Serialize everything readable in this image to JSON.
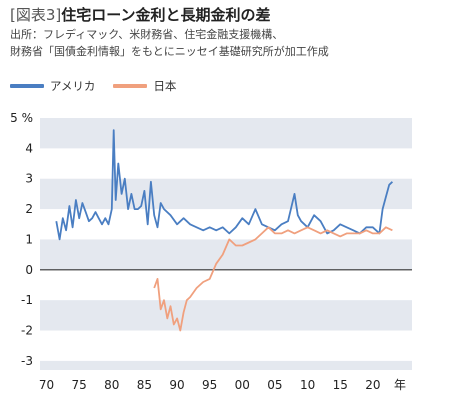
{
  "header": {
    "tag": "[図表3]",
    "title": "住宅ローン金利と長期金利の差",
    "source_line1": "出所：フレディマック、米財務省、住宅金融支援機構、",
    "source_line2": "財務省「国債金利情報」をもとにニッセイ基礎研究所が加工作成"
  },
  "colors": {
    "usa": "#4a7ec2",
    "japan": "#f0a07e",
    "band": "#e4e8ef",
    "zero_line": "#333333"
  },
  "chart_data": {
    "type": "line",
    "ylabel": "%",
    "xlabel": "年",
    "ylim": [
      -3.3,
      5
    ],
    "xlim": [
      1969,
      2026
    ],
    "y_ticks": [
      5,
      4,
      3,
      2,
      1,
      0,
      -1,
      -2,
      -3
    ],
    "y_tick_labels": [
      "5 %",
      "4",
      "3",
      "2",
      "1",
      "0",
      "-1",
      "-2",
      "-3"
    ],
    "x_ticks": [
      1970,
      1975,
      1980,
      1985,
      1990,
      1995,
      2000,
      2005,
      2010,
      2015,
      2020
    ],
    "x_tick_labels": [
      "70",
      "75",
      "80",
      "85",
      "90",
      "95",
      "00",
      "05",
      "10",
      "15",
      "20"
    ],
    "x_unit_label": "年",
    "series": [
      {
        "name": "アメリカ",
        "x": [
          1971.5,
          1972,
          1972.5,
          1973,
          1973.5,
          1974,
          1974.5,
          1975,
          1975.5,
          1976,
          1976.5,
          1977,
          1977.5,
          1978,
          1978.5,
          1979,
          1979.5,
          1980,
          1980.3,
          1980.6,
          1981,
          1981.5,
          1982,
          1982.5,
          1983,
          1983.5,
          1984,
          1984.5,
          1985,
          1985.5,
          1986,
          1986.5,
          1987,
          1987.5,
          1988,
          1989,
          1990,
          1991,
          1992,
          1993,
          1994,
          1995,
          1996,
          1997,
          1998,
          1999,
          2000,
          2001,
          2002,
          2003,
          2004,
          2005,
          2006,
          2007,
          2008,
          2008.5,
          2009,
          2010,
          2011,
          2012,
          2013,
          2014,
          2015,
          2016,
          2017,
          2018,
          2019,
          2020,
          2021,
          2021.5,
          2022,
          2022.5,
          2023
        ],
        "values": [
          1.6,
          1.0,
          1.7,
          1.3,
          2.1,
          1.4,
          2.3,
          1.7,
          2.2,
          1.9,
          1.6,
          1.7,
          1.9,
          1.7,
          1.5,
          1.7,
          1.5,
          2.0,
          4.6,
          2.3,
          3.5,
          2.5,
          3.0,
          2.0,
          2.5,
          2.0,
          2.0,
          2.1,
          2.6,
          1.5,
          2.9,
          1.8,
          1.4,
          2.2,
          2.0,
          1.8,
          1.5,
          1.7,
          1.5,
          1.4,
          1.3,
          1.4,
          1.3,
          1.4,
          1.2,
          1.4,
          1.7,
          1.5,
          2.0,
          1.5,
          1.4,
          1.3,
          1.5,
          1.6,
          2.5,
          1.8,
          1.6,
          1.4,
          1.8,
          1.6,
          1.2,
          1.3,
          1.5,
          1.4,
          1.3,
          1.2,
          1.4,
          1.4,
          1.2,
          2.0,
          2.4,
          2.8,
          2.9
        ]
      },
      {
        "name": "日本",
        "x": [
          1986.5,
          1987,
          1987.5,
          1988,
          1988.5,
          1989,
          1989.5,
          1990,
          1990.5,
          1991,
          1991.5,
          1992,
          1993,
          1994,
          1995,
          1996,
          1997,
          1998,
          1999,
          2000,
          2001,
          2002,
          2003,
          2004,
          2005,
          2006,
          2007,
          2008,
          2009,
          2010,
          2011,
          2012,
          2013,
          2014,
          2015,
          2016,
          2017,
          2018,
          2019,
          2020,
          2021,
          2022,
          2023
        ],
        "values": [
          -0.6,
          -0.3,
          -1.3,
          -1.0,
          -1.6,
          -1.2,
          -1.8,
          -1.6,
          -2.0,
          -1.4,
          -1.0,
          -0.9,
          -0.6,
          -0.4,
          -0.3,
          0.2,
          0.5,
          1.0,
          0.8,
          0.8,
          0.9,
          1.0,
          1.2,
          1.4,
          1.2,
          1.2,
          1.3,
          1.2,
          1.3,
          1.4,
          1.3,
          1.2,
          1.3,
          1.2,
          1.1,
          1.2,
          1.2,
          1.2,
          1.3,
          1.2,
          1.2,
          1.4,
          1.3
        ]
      }
    ]
  }
}
